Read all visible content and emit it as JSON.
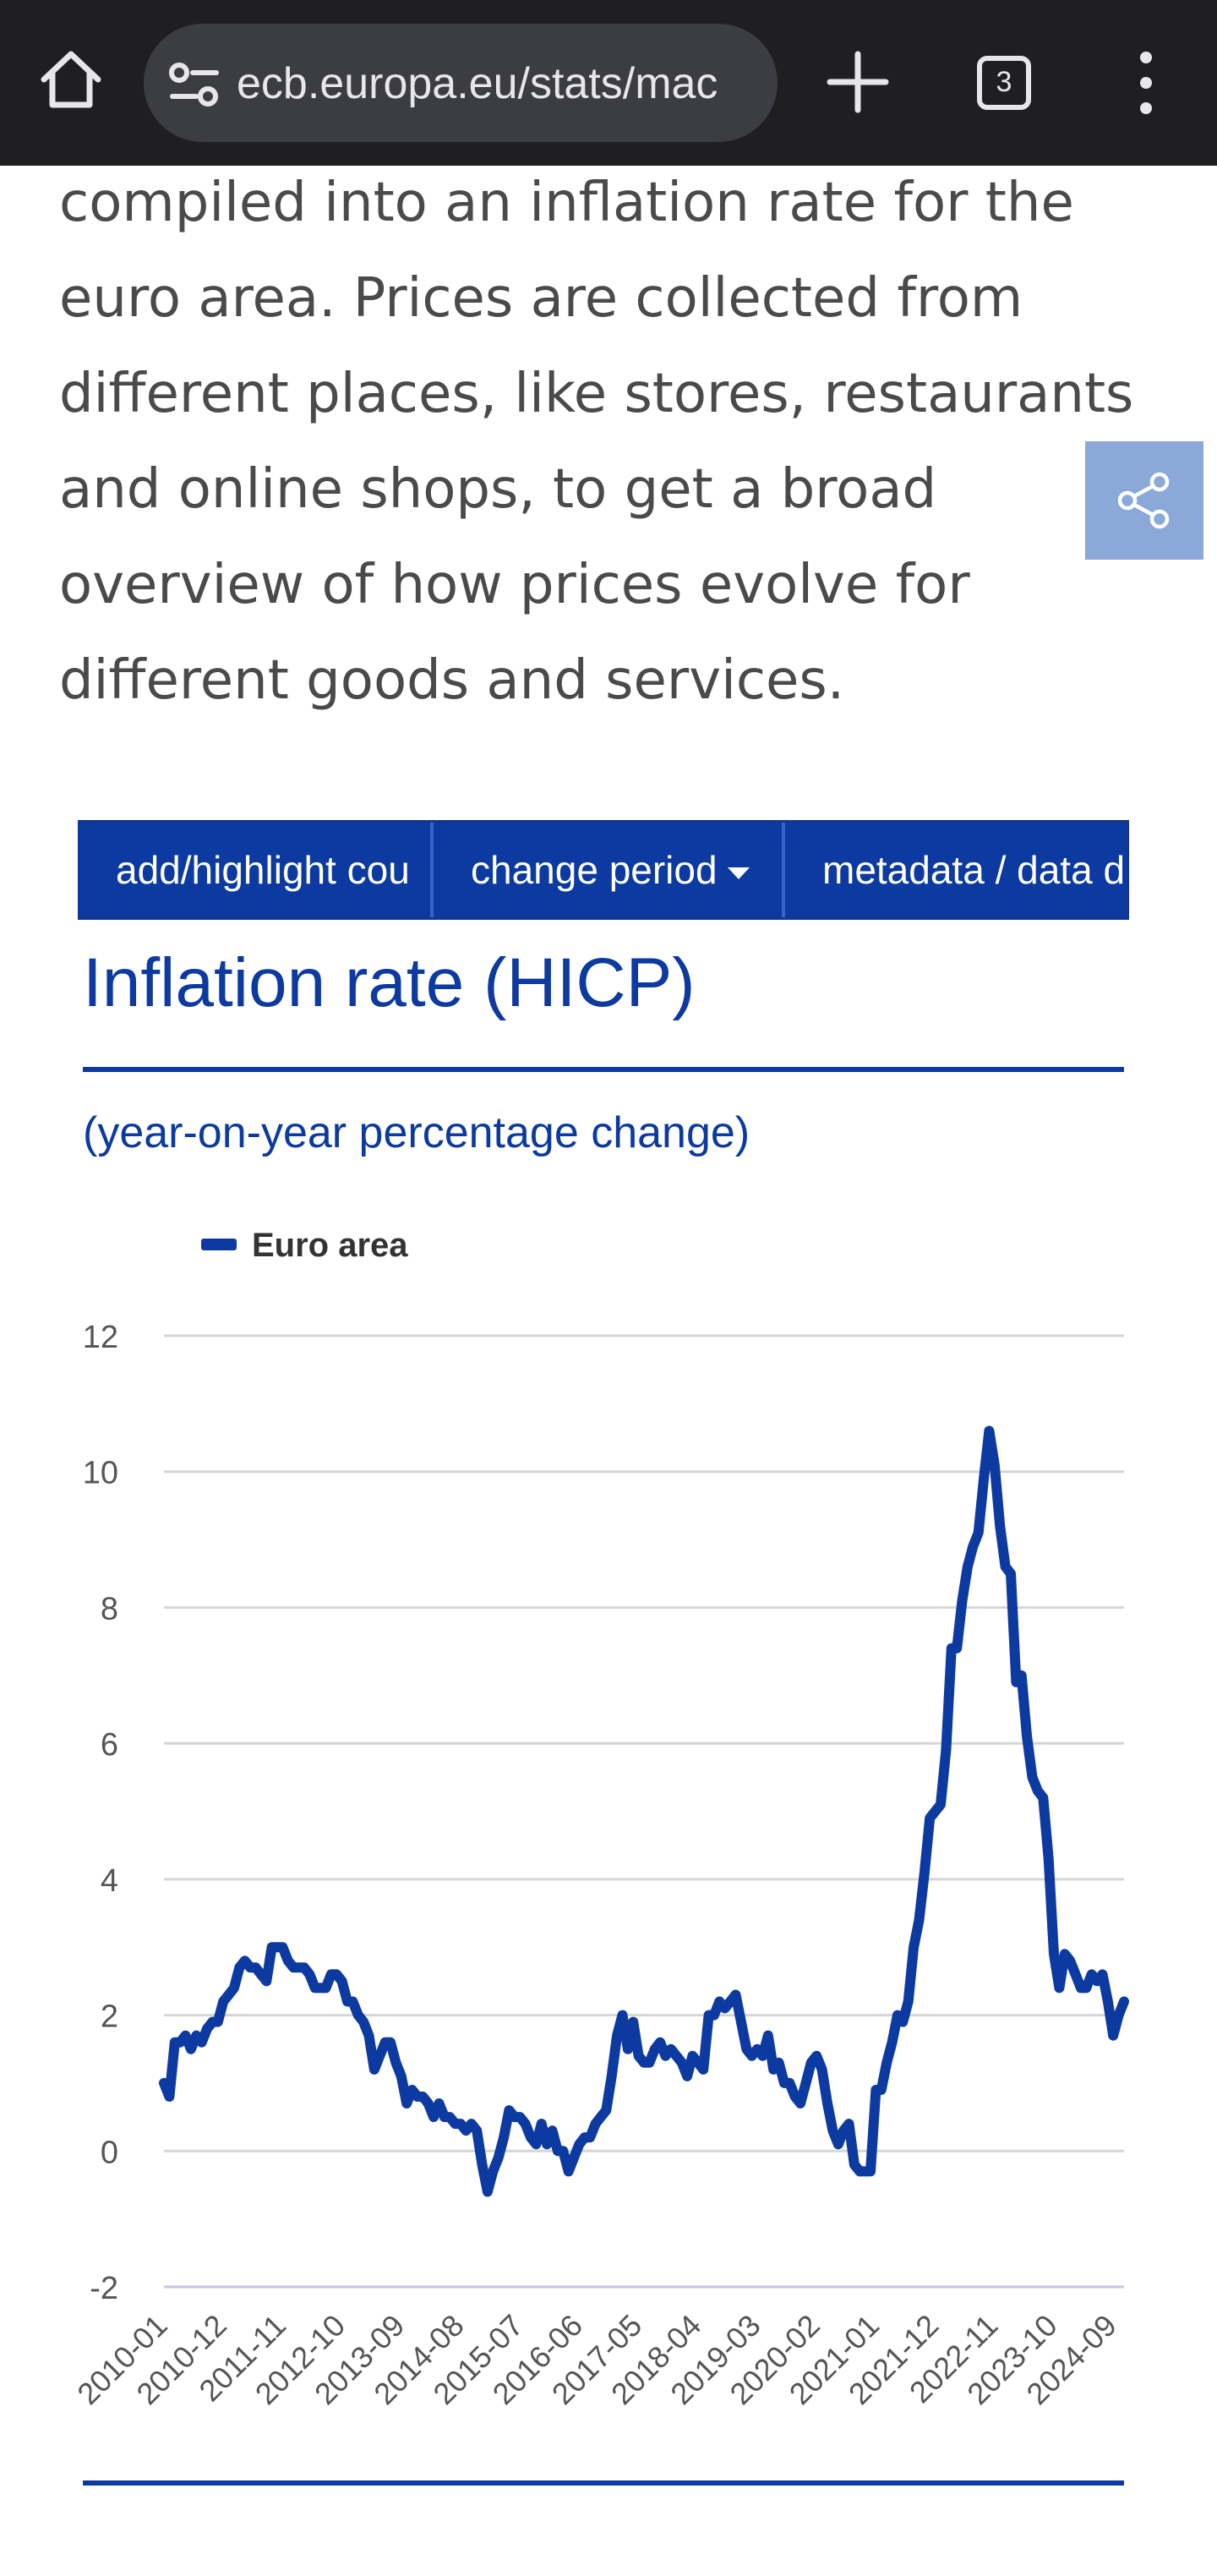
{
  "browser": {
    "url": "ecb.europa.eu/stats/mac",
    "tab_count": "3",
    "icons": [
      "home-icon",
      "site-settings-icon",
      "new-tab-icon",
      "tab-switcher-icon",
      "more-menu-icon"
    ]
  },
  "article": {
    "lines": [
      "compiled into an inflation rate for the",
      "euro area. Prices are collected from",
      "different places, like stores, restaurants",
      "and online shops, to get a broad",
      "overview of how prices evolve for",
      "different goods and services."
    ]
  },
  "share": {
    "icon": "share-icon",
    "color": "#8aa8d8"
  },
  "toolbar": {
    "buttons": [
      {
        "label": "add/highlight cou"
      },
      {
        "label": "change period"
      },
      {
        "label": "metadata / data d"
      }
    ]
  },
  "chart_header": {
    "title": "Inflation rate (HICP)",
    "subtitle": "(year-on-year percentage change)"
  },
  "chart_data": {
    "type": "line",
    "ylim": [
      -2,
      12
    ],
    "yticks": [
      12,
      10,
      8,
      6,
      4,
      2,
      0,
      -2
    ],
    "xticks": [
      "2010-01",
      "2010-12",
      "2011-11",
      "2012-10",
      "2013-09",
      "2014-08",
      "2015-07",
      "2016-06",
      "2017-05",
      "2018-04",
      "2019-03",
      "2020-02",
      "2021-01",
      "2021-12",
      "2022-11",
      "2023-10",
      "2024-09"
    ],
    "grid": true,
    "legend_position": "top-left",
    "series": [
      {
        "name": "Euro area",
        "color": "#0c3aa0",
        "values": [
          1.0,
          0.8,
          1.6,
          1.6,
          1.7,
          1.5,
          1.7,
          1.6,
          1.8,
          1.9,
          1.9,
          2.2,
          2.3,
          2.4,
          2.7,
          2.8,
          2.7,
          2.7,
          2.6,
          2.5,
          3.0,
          3.0,
          3.0,
          2.8,
          2.7,
          2.7,
          2.7,
          2.6,
          2.4,
          2.4,
          2.4,
          2.6,
          2.6,
          2.5,
          2.2,
          2.2,
          2.0,
          1.9,
          1.7,
          1.2,
          1.4,
          1.6,
          1.6,
          1.3,
          1.1,
          0.7,
          0.9,
          0.8,
          0.8,
          0.7,
          0.5,
          0.7,
          0.5,
          0.5,
          0.4,
          0.4,
          0.3,
          0.4,
          0.3,
          -0.2,
          -0.6,
          -0.3,
          -0.1,
          0.2,
          0.6,
          0.5,
          0.5,
          0.4,
          0.2,
          0.1,
          0.4,
          0.1,
          0.3,
          0.0,
          0.0,
          -0.3,
          -0.1,
          0.1,
          0.2,
          0.2,
          0.4,
          0.5,
          0.6,
          1.1,
          1.7,
          2.0,
          1.5,
          1.9,
          1.4,
          1.3,
          1.3,
          1.5,
          1.6,
          1.4,
          1.5,
          1.4,
          1.3,
          1.1,
          1.4,
          1.3,
          1.2,
          2.0,
          2.0,
          2.2,
          2.1,
          2.2,
          2.3,
          1.9,
          1.5,
          1.4,
          1.5,
          1.4,
          1.7,
          1.2,
          1.3,
          1.0,
          1.0,
          0.8,
          0.7,
          1.0,
          1.3,
          1.4,
          1.2,
          0.7,
          0.3,
          0.1,
          0.3,
          0.4,
          -0.2,
          -0.3,
          -0.3,
          -0.3,
          0.9,
          0.9,
          1.3,
          1.6,
          2.0,
          1.9,
          2.2,
          3.0,
          3.4,
          4.1,
          4.9,
          5.0,
          5.1,
          5.9,
          7.4,
          7.4,
          8.1,
          8.6,
          8.9,
          9.1,
          9.9,
          10.6,
          10.1,
          9.2,
          8.6,
          8.5,
          6.9,
          7.0,
          6.1,
          5.5,
          5.3,
          5.2,
          4.3,
          2.9,
          2.4,
          2.9,
          2.8,
          2.6,
          2.4,
          2.4,
          2.6,
          2.5,
          2.6,
          2.2,
          1.7,
          2.0,
          2.2
        ]
      }
    ]
  }
}
